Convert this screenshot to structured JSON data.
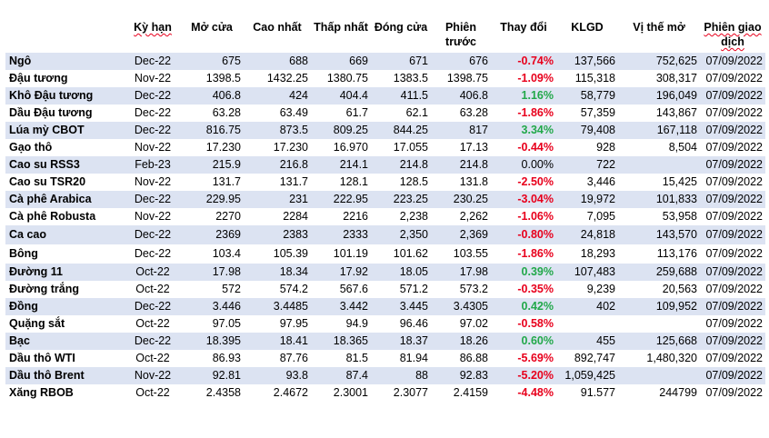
{
  "headers": [
    "",
    "Kỳ hạn",
    "Mở cửa",
    "Cao nhất",
    "Thấp nhất",
    "Đóng cửa",
    "Phiên trước",
    "Thay đổi",
    "KLGD",
    "Vị thế mở",
    "Phiên giao dịch"
  ],
  "rows": [
    [
      "Ngô",
      "Dec-22",
      "675",
      "688",
      "669",
      "671",
      "676",
      "-0.74%",
      "137,566",
      "752,625",
      "07/09/2022"
    ],
    [
      "Đậu tương",
      "Nov-22",
      "1398.5",
      "1432.25",
      "1380.75",
      "1383.5",
      "1398.75",
      "-1.09%",
      "115,318",
      "308,317",
      "07/09/2022"
    ],
    [
      "Khô Đậu tương",
      "Dec-22",
      "406.8",
      "424",
      "404.4",
      "411.5",
      "406.8",
      "1.16%",
      "58,779",
      "196,049",
      "07/09/2022"
    ],
    [
      "Dầu Đậu tương",
      "Dec-22",
      "63.28",
      "63.49",
      "61.7",
      "62.1",
      "63.28",
      "-1.86%",
      "57,359",
      "143,867",
      "07/09/2022"
    ],
    [
      "Lúa mỳ CBOT",
      "Dec-22",
      "816.75",
      "873.5",
      "809.25",
      "844.25",
      "817",
      "3.34%",
      "79,408",
      "167,118",
      "07/09/2022"
    ],
    [
      "Gạo thô",
      "Nov-22",
      "17.230",
      "17.230",
      "16.970",
      "17.055",
      "17.13",
      "-0.44%",
      "928",
      "8,504",
      "07/09/2022"
    ],
    [
      "Cao su RSS3",
      "Feb-23",
      "215.9",
      "216.8",
      "214.1",
      "214.8",
      "214.8",
      "0.00%",
      "722",
      "",
      "07/09/2022"
    ],
    [
      "Cao su TSR20",
      "Nov-22",
      "131.7",
      "131.7",
      "128.1",
      "128.5",
      "131.8",
      "-2.50%",
      "3,446",
      "15,425",
      "07/09/2022"
    ],
    [
      "Cà phê Arabica",
      "Dec-22",
      "229.95",
      "231",
      "222.95",
      "223.25",
      "230.25",
      "-3.04%",
      "19,972",
      "101,833",
      "07/09/2022"
    ],
    [
      "Cà phê Robusta",
      "Nov-22",
      "2270",
      "2284",
      "2216",
      "2,238",
      "2,262",
      "-1.06%",
      "7,095",
      "53,958",
      "07/09/2022"
    ],
    [
      "Ca cao",
      "Dec-22",
      "2369",
      "2383",
      "2333",
      "2,350",
      "2,369",
      "-0.80%",
      "24,818",
      "143,570",
      "07/09/2022"
    ],
    [
      "Bông",
      "Dec-22",
      "103.4",
      "105.39",
      "101.19",
      "101.62",
      "103.55",
      "-1.86%",
      "18,293",
      "113,176",
      "07/09/2022"
    ],
    [
      "Đường 11",
      "Oct-22",
      "17.98",
      "18.34",
      "17.92",
      "18.05",
      "17.98",
      "0.39%",
      "107,483",
      "259,688",
      "07/09/2022"
    ],
    [
      "Đường trắng",
      "Oct-22",
      "572",
      "574.2",
      "567.6",
      "571.2",
      "573.2",
      "-0.35%",
      "9,239",
      "20,563",
      "07/09/2022"
    ],
    [
      "Đồng",
      "Dec-22",
      "3.446",
      "3.4485",
      "3.442",
      "3.445",
      "3.4305",
      "0.42%",
      "402",
      "109,952",
      "07/09/2022"
    ],
    [
      "Quặng sắt",
      "Oct-22",
      "97.05",
      "97.95",
      "94.9",
      "96.46",
      "97.02",
      "-0.58%",
      "",
      "",
      "07/09/2022"
    ],
    [
      "Bạc",
      "Dec-22",
      "18.395",
      "18.41",
      "18.365",
      "18.37",
      "18.26",
      "0.60%",
      "455",
      "125,668",
      "07/09/2022"
    ],
    [
      "Dầu thô WTI",
      "Oct-22",
      "86.93",
      "87.76",
      "81.5",
      "81.94",
      "86.88",
      "-5.69%",
      "892,747",
      "1,480,320",
      "07/09/2022"
    ],
    [
      "Dầu thô Brent",
      "Nov-22",
      "92.81",
      "93.8",
      "87.4",
      "88",
      "92.83",
      "-5.20%",
      "1,059,425",
      "",
      "07/09/2022"
    ],
    [
      "Xăng RBOB",
      "Oct-22",
      "2.4358",
      "2.4672",
      "2.3001",
      "2.3077",
      "2.4159",
      "-4.48%",
      "91.577",
      "244799",
      "07/09/2022"
    ]
  ],
  "colors": {
    "stripe": "#dce3f2",
    "negative": "#e8001c",
    "positive": "#22a84a"
  }
}
